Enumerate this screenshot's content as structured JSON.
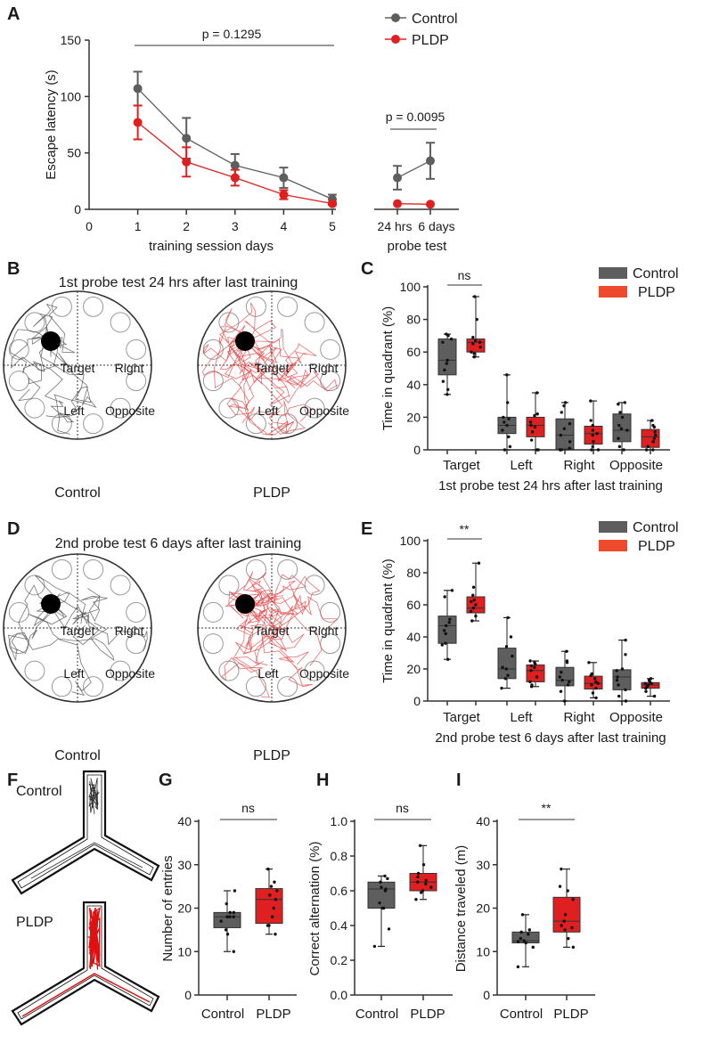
{
  "colors": {
    "control": "#5e5e5e",
    "pldp": "#e02020",
    "pldp_legend": "#ee4a2e",
    "axis": "#333333"
  },
  "panel_labels": {
    "A": "A",
    "B": "B",
    "C": "C",
    "D": "D",
    "E": "E",
    "F": "F",
    "G": "G",
    "H": "H",
    "I": "I"
  },
  "maze": {
    "B": {
      "title": "1st probe test 24 hrs after last training",
      "groups": [
        "Control",
        "PLDP"
      ]
    },
    "D": {
      "title": "2nd probe test 6 days after last training",
      "groups": [
        "Control",
        "PLDP"
      ]
    },
    "quadrants": [
      "Target",
      "Right",
      "Left",
      "Opposite"
    ]
  },
  "ymaze": {
    "groups": [
      "Control",
      "PLDP"
    ]
  },
  "chart_data": [
    {
      "id": "A",
      "type": "line",
      "ylabel": "Escape latency (s)",
      "xlabel": "training session days",
      "ylim": [
        0,
        150
      ],
      "yticks": [
        0,
        50,
        100,
        150
      ],
      "xlim": [
        0,
        5
      ],
      "xticks": [
        0,
        1,
        2,
        3,
        4,
        5
      ],
      "legend": [
        "Control",
        "PLDP"
      ],
      "legend_position": "top-right",
      "annotation": "p = 0.1295",
      "series": [
        {
          "name": "Control",
          "x": [
            1,
            2,
            3,
            4,
            5
          ],
          "y": [
            107,
            63,
            39,
            28,
            9
          ],
          "err": [
            15,
            18,
            10,
            9,
            4
          ]
        },
        {
          "name": "PLDP",
          "x": [
            1,
            2,
            3,
            4,
            5
          ],
          "y": [
            77,
            42,
            28,
            13,
            5
          ],
          "err": [
            15,
            13,
            7,
            4,
            1
          ]
        }
      ],
      "probe": {
        "xlabel": "probe test",
        "categories": [
          "24 hrs",
          "6 days"
        ],
        "annotation": "p = 0.0095",
        "series": [
          {
            "name": "Control",
            "y": [
              28,
              43
            ],
            "err": [
              10.5,
              16
            ]
          },
          {
            "name": "PLDP",
            "y": [
              5,
              4.5
            ],
            "err": [
              0.5,
              0.5
            ]
          }
        ]
      }
    },
    {
      "id": "C",
      "type": "box",
      "ylabel": "Time in quadrant (%)",
      "xlabel": "1st probe test 24 hrs after last training",
      "ylim": [
        0,
        100
      ],
      "yticks": [
        0,
        20,
        40,
        60,
        80,
        100
      ],
      "categories": [
        "Target",
        "Left",
        "Right",
        "Opposite"
      ],
      "legend": [
        "Control",
        "PLDP"
      ],
      "legend_position": "top-right",
      "annotation": "ns",
      "series": [
        {
          "name": "Control",
          "boxes": [
            {
              "min": 34,
              "q1": 46,
              "median": 55,
              "q3": 68,
              "max": 71,
              "points": [
                34,
                37,
                42,
                49,
                53,
                55,
                66,
                68,
                70,
                71
              ]
            },
            {
              "min": 0,
              "q1": 10,
              "median": 15,
              "q3": 20,
              "max": 46,
              "points": [
                0,
                2,
                8,
                12,
                15,
                17,
                19,
                20,
                29,
                46
              ]
            },
            {
              "min": 0,
              "q1": 0.5,
              "median": 9,
              "q3": 19,
              "max": 29,
              "points": [
                0,
                0,
                1,
                5,
                9,
                13,
                16,
                23,
                27,
                29
              ]
            },
            {
              "min": 0,
              "q1": 5,
              "median": 12,
              "q3": 22,
              "max": 29,
              "points": [
                0,
                2,
                7,
                12,
                13,
                15,
                20,
                23,
                28,
                29
              ]
            }
          ]
        },
        {
          "name": "PLDP",
          "boxes": [
            {
              "min": 57,
              "q1": 60,
              "median": 66,
              "q3": 68,
              "max": 94,
              "points": [
                57,
                59,
                60,
                63,
                65,
                66,
                67,
                69,
                80,
                94
              ]
            },
            {
              "min": 0,
              "q1": 8,
              "median": 15,
              "q3": 20,
              "max": 35,
              "points": [
                0,
                0,
                6,
                11,
                14,
                15,
                17,
                21,
                22,
                35
              ]
            },
            {
              "min": 0,
              "q1": 3.5,
              "median": 10,
              "q3": 14.5,
              "max": 30,
              "points": [
                0,
                0,
                2,
                5,
                9,
                10,
                12,
                15,
                18,
                30
              ]
            },
            {
              "min": 0,
              "q1": 1.5,
              "median": 8,
              "q3": 12.5,
              "max": 18,
              "points": [
                0,
                0,
                2,
                5,
                7,
                9,
                11,
                14,
                15,
                18
              ]
            }
          ]
        }
      ]
    },
    {
      "id": "E",
      "type": "box",
      "ylabel": "Time in quadrant (%)",
      "xlabel": "2nd probe test 6 days after last training",
      "ylim": [
        0,
        100
      ],
      "yticks": [
        0,
        20,
        40,
        60,
        80,
        100
      ],
      "categories": [
        "Target",
        "Left",
        "Right",
        "Opposite"
      ],
      "legend": [
        "Control",
        "PLDP"
      ],
      "legend_position": "top-right",
      "annotation": "**",
      "series": [
        {
          "name": "Control",
          "boxes": [
            {
              "min": 26,
              "q1": 36,
              "median": 47,
              "q3": 53,
              "max": 69,
              "points": [
                26,
                35,
                36,
                42,
                44,
                47,
                49,
                51,
                65,
                69
              ]
            },
            {
              "min": 8,
              "q1": 14,
              "median": 20,
              "q3": 33,
              "max": 52,
              "points": [
                8,
                14,
                16,
                20,
                21,
                28,
                34,
                40,
                52
              ]
            },
            {
              "min": 0,
              "q1": 9.5,
              "median": 13,
              "q3": 21,
              "max": 31,
              "points": [
                0,
                6,
                10,
                12,
                13,
                15,
                18,
                24,
                25,
                31
              ]
            },
            {
              "min": 0,
              "q1": 7,
              "median": 15,
              "q3": 19.5,
              "max": 38,
              "points": [
                0,
                3,
                7,
                10,
                13,
                15,
                19,
                20,
                29,
                38
              ]
            }
          ]
        },
        {
          "name": "PLDP",
          "boxes": [
            {
              "min": 50,
              "q1": 55,
              "median": 58,
              "q3": 65,
              "max": 86,
              "points": [
                50,
                53,
                56,
                58,
                60,
                62,
                63,
                66,
                71,
                86
              ]
            },
            {
              "min": 9,
              "q1": 12,
              "median": 19,
              "q3": 22.5,
              "max": 25,
              "points": [
                9,
                10,
                12,
                15,
                19,
                21,
                22,
                23,
                24,
                25
              ]
            },
            {
              "min": 2,
              "q1": 7.5,
              "median": 11,
              "q3": 15.5,
              "max": 24,
              "points": [
                2,
                5,
                8,
                10,
                11,
                12,
                14,
                16,
                17,
                24
              ]
            },
            {
              "min": 3,
              "q1": 8,
              "median": 10,
              "q3": 11.5,
              "max": 14,
              "points": [
                3,
                6,
                8,
                9,
                10,
                11,
                11,
                12,
                13,
                14
              ]
            }
          ]
        }
      ]
    },
    {
      "id": "G",
      "type": "box",
      "ylabel": "Number of entries",
      "ylim": [
        0,
        40
      ],
      "yticks": [
        0,
        10,
        20,
        30,
        40
      ],
      "categories": [
        "Control",
        "PLDP"
      ],
      "annotation": "ns",
      "boxes": [
        {
          "name": "Control",
          "min": 10,
          "q1": 15.5,
          "median": 18,
          "q3": 19,
          "max": 24,
          "points": [
            10,
            14,
            15,
            17,
            18,
            18,
            18,
            19,
            19,
            21,
            24
          ]
        },
        {
          "name": "PLDP",
          "min": 14,
          "q1": 16.5,
          "median": 22,
          "q3": 24.5,
          "max": 29,
          "points": [
            14,
            16,
            16,
            18,
            20,
            22,
            23,
            24,
            25,
            26,
            29
          ]
        }
      ]
    },
    {
      "id": "H",
      "type": "box",
      "ylabel": "Correct alternation (%)",
      "ylim": [
        0,
        1.0
      ],
      "yticks": [
        "0.0",
        "0.2",
        "0.4",
        "0.6",
        "0.8",
        "1.0"
      ],
      "categories": [
        "Control",
        "PLDP"
      ],
      "annotation": "ns",
      "boxes": [
        {
          "name": "Control",
          "min": 0.28,
          "q1": 0.5,
          "median": 0.61,
          "q3": 0.65,
          "max": 0.685,
          "points": [
            0.28,
            0.38,
            0.5,
            0.5,
            0.53,
            0.6,
            0.61,
            0.62,
            0.65,
            0.67,
            0.685
          ]
        },
        {
          "name": "PLDP",
          "min": 0.55,
          "q1": 0.6,
          "median": 0.65,
          "q3": 0.7,
          "max": 0.86,
          "points": [
            0.55,
            0.59,
            0.6,
            0.62,
            0.64,
            0.65,
            0.66,
            0.68,
            0.7,
            0.75,
            0.86
          ]
        }
      ]
    },
    {
      "id": "I",
      "type": "box",
      "ylabel": "Distance traveled (m)",
      "ylim": [
        0,
        40
      ],
      "yticks": [
        0,
        10,
        20,
        30,
        40
      ],
      "categories": [
        "Control",
        "PLDP"
      ],
      "annotation": "**",
      "boxes": [
        {
          "name": "Control",
          "min": 6.5,
          "q1": 12,
          "median": 12.5,
          "q3": 14.5,
          "max": 18.5,
          "points": [
            6.5,
            11,
            12,
            12.3,
            12.5,
            13,
            14,
            14.5,
            15,
            18.5
          ]
        },
        {
          "name": "PLDP",
          "min": 11,
          "q1": 14.5,
          "median": 17,
          "q3": 22.5,
          "max": 29,
          "points": [
            11,
            13,
            15,
            15.5,
            16,
            17,
            18.5,
            22,
            24,
            25,
            29
          ]
        }
      ]
    }
  ]
}
